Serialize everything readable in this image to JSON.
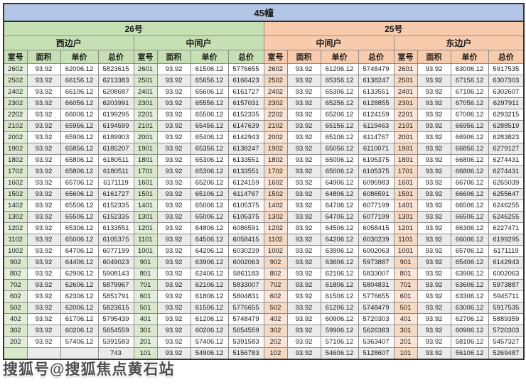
{
  "title": "45幢",
  "watermark": "搜狐号@搜狐焦点黄石站",
  "columns": [
    "室号",
    "面积",
    "单价",
    "总价"
  ],
  "colors": {
    "title_bar": "#b4c6e7",
    "building_26": "#c6e0b4",
    "building_25": "#f8cbad",
    "room_col_26": "#e2efda",
    "room_col_25": "#fce4d6",
    "alt_row": "#ebebeb"
  },
  "buildings": [
    {
      "label": "26号",
      "units": [
        {
          "label": "西边户",
          "rows": [
            [
              "2602",
              "93.92",
              "62006.12",
              "5823615"
            ],
            [
              "2502",
              "93.92",
              "66156.12",
              "6213383"
            ],
            [
              "2402",
              "93.92",
              "66106.12",
              "6208687"
            ],
            [
              "2302",
              "93.92",
              "66056.12",
              "6203991"
            ],
            [
              "2202",
              "93.92",
              "66006.12",
              "6199295"
            ],
            [
              "2102",
              "93.92",
              "65956.12",
              "6194599"
            ],
            [
              "2002",
              "93.92",
              "65906.12",
              "6189903"
            ],
            [
              "1902",
              "93.92",
              "65856.12",
              "6185207"
            ],
            [
              "1802",
              "93.92",
              "65806.12",
              "6180511"
            ],
            [
              "1702",
              "93.92",
              "65806.12",
              "6180511"
            ],
            [
              "1602",
              "93.92",
              "65706.12",
              "6171119"
            ],
            [
              "1502",
              "93.92",
              "65606.12",
              "6161727"
            ],
            [
              "1402",
              "93.92",
              "65506.12",
              "6152335"
            ],
            [
              "1302",
              "93.92",
              "65506.12",
              "6152335"
            ],
            [
              "1202",
              "93.92",
              "65306.12",
              "6133551"
            ],
            [
              "1102",
              "93.92",
              "65006.12",
              "6105375"
            ],
            [
              "1002",
              "93.92",
              "64706.12",
              "6077199"
            ],
            [
              "902",
              "93.92",
              "64406.12",
              "6049023"
            ],
            [
              "802",
              "93.92",
              "62906.12",
              "5908143"
            ],
            [
              "702",
              "93.92",
              "62606.12",
              "5879967"
            ],
            [
              "602",
              "93.92",
              "62306.12",
              "5851791"
            ],
            [
              "502",
              "93.92",
              "62006.12",
              "5823615"
            ],
            [
              "402",
              "93.92",
              "61706.12",
              "5795439"
            ],
            [
              "302",
              "93.92",
              "60206.12",
              "5654559"
            ],
            [
              "202",
              "93.92",
              "57406.12",
              "5391583"
            ],
            [
              "",
              "",
              "",
              "743"
            ]
          ]
        },
        {
          "label": "中间户",
          "rows": [
            [
              "2601",
              "93.92",
              "61506.12",
              "5776655"
            ],
            [
              "2501",
              "93.92",
              "65656.12",
              "6166423"
            ],
            [
              "2401",
              "93.92",
              "65606.12",
              "6161727"
            ],
            [
              "2301",
              "93.92",
              "65556.12",
              "6157031"
            ],
            [
              "2201",
              "93.92",
              "65506.12",
              "6152335"
            ],
            [
              "2101",
              "93.92",
              "65456.12",
              "6147639"
            ],
            [
              "2001",
              "93.92",
              "65406.12",
              "6142943"
            ],
            [
              "1901",
              "93.92",
              "65356.12",
              "6138247"
            ],
            [
              "1801",
              "93.92",
              "65306.12",
              "6133551"
            ],
            [
              "1701",
              "93.92",
              "65306.12",
              "6133551"
            ],
            [
              "1601",
              "93.92",
              "65206.12",
              "6124159"
            ],
            [
              "1501",
              "93.92",
              "65106.12",
              "6114767"
            ],
            [
              "1401",
              "93.92",
              "65006.12",
              "6105375"
            ],
            [
              "1301",
              "93.92",
              "65006.12",
              "6105375"
            ],
            [
              "1201",
              "93.92",
              "64806.12",
              "6086591"
            ],
            [
              "1101",
              "93.92",
              "64506.12",
              "6058415"
            ],
            [
              "1001",
              "93.92",
              "64206.12",
              "6030239"
            ],
            [
              "901",
              "93.92",
              "63906.12",
              "6002063"
            ],
            [
              "801",
              "93.92",
              "62406.12",
              "5861183"
            ],
            [
              "701",
              "93.92",
              "62106.12",
              "5833007"
            ],
            [
              "601",
              "93.92",
              "61806.12",
              "5804831"
            ],
            [
              "501",
              "93.92",
              "61506.12",
              "5776655"
            ],
            [
              "401",
              "93.92",
              "61206.12",
              "5748479"
            ],
            [
              "301",
              "93.92",
              "60206.12",
              "5654559"
            ],
            [
              "201",
              "93.92",
              "57406.12",
              "5391583"
            ],
            [
              "101",
              "93.92",
              "54906.12",
              "5156783"
            ]
          ]
        }
      ]
    },
    {
      "label": "25号",
      "units": [
        {
          "label": "中间户",
          "rows": [
            [
              "2602",
              "93.92",
              "61206.12",
              "5748479"
            ],
            [
              "2502",
              "93.92",
              "65356.12",
              "6138247"
            ],
            [
              "2402",
              "93.92",
              "65306.12",
              "6133551"
            ],
            [
              "2302",
              "93.92",
              "65256.12",
              "6128855"
            ],
            [
              "2202",
              "93.92",
              "65206.12",
              "6124159"
            ],
            [
              "2102",
              "93.92",
              "65156.12",
              "6119463"
            ],
            [
              "2002",
              "93.92",
              "65106.12",
              "6114767"
            ],
            [
              "1902",
              "93.92",
              "65056.12",
              "6110071"
            ],
            [
              "1802",
              "93.92",
              "65006.12",
              "6105375"
            ],
            [
              "1702",
              "93.92",
              "65006.12",
              "6105375"
            ],
            [
              "1602",
              "93.92",
              "64906.12",
              "6095983"
            ],
            [
              "1502",
              "93.92",
              "64806.12",
              "6086591"
            ],
            [
              "1402",
              "93.92",
              "64706.12",
              "6077199"
            ],
            [
              "1302",
              "93.92",
              "64706.12",
              "6077199"
            ],
            [
              "1202",
              "93.92",
              "64506.12",
              "6058415"
            ],
            [
              "1102",
              "93.92",
              "64206.12",
              "6030239"
            ],
            [
              "1002",
              "93.92",
              "63906.12",
              "6002063"
            ],
            [
              "902",
              "93.92",
              "63606.12",
              "5973887"
            ],
            [
              "802",
              "93.92",
              "62106.12",
              "5833007"
            ],
            [
              "702",
              "93.92",
              "61806.12",
              "5804831"
            ],
            [
              "602",
              "93.92",
              "61506.12",
              "5776655"
            ],
            [
              "502",
              "93.92",
              "61206.12",
              "5748479"
            ],
            [
              "402",
              "93.92",
              "60906.12",
              "5720303"
            ],
            [
              "302",
              "93.92",
              "59906.12",
              "5626383"
            ],
            [
              "202",
              "93.92",
              "57106.12",
              "5363407"
            ],
            [
              "102",
              "93.92",
              "54606.12",
              "5128607"
            ]
          ]
        },
        {
          "label": "东边户",
          "rows": [
            [
              "2601",
              "93.92",
              "63006.12",
              "5917535"
            ],
            [
              "2501",
              "93.92",
              "67156.12",
              "6307303"
            ],
            [
              "2401",
              "93.92",
              "67106.12",
              "6302607"
            ],
            [
              "2301",
              "93.92",
              "67056.12",
              "6297911"
            ],
            [
              "2201",
              "93.92",
              "67006.12",
              "6293215"
            ],
            [
              "2101",
              "93.92",
              "66956.12",
              "6288519"
            ],
            [
              "2001",
              "93.92",
              "66906.12",
              "6283823"
            ],
            [
              "1901",
              "93.92",
              "66856.12",
              "6279127"
            ],
            [
              "1801",
              "93.92",
              "66806.12",
              "6274431"
            ],
            [
              "1701",
              "93.92",
              "66806.12",
              "6274431"
            ],
            [
              "1601",
              "93.92",
              "66706.12",
              "6265039"
            ],
            [
              "1501",
              "93.92",
              "66606.12",
              "6255647"
            ],
            [
              "1401",
              "93.92",
              "66506.12",
              "6246255"
            ],
            [
              "1301",
              "93.92",
              "66506.12",
              "6246255"
            ],
            [
              "1201",
              "93.92",
              "66306.12",
              "6227471"
            ],
            [
              "1101",
              "93.92",
              "66006.12",
              "6199295"
            ],
            [
              "1001",
              "93.92",
              "65706.12",
              "6171119"
            ],
            [
              "901",
              "93.92",
              "65406.12",
              "6142943"
            ],
            [
              "801",
              "93.92",
              "63906.12",
              "6002063"
            ],
            [
              "701",
              "93.92",
              "63606.12",
              "5973887"
            ],
            [
              "601",
              "93.92",
              "63306.12",
              "5945711"
            ],
            [
              "501",
              "93.92",
              "63006.12",
              "5917535"
            ],
            [
              "401",
              "93.92",
              "62706.12",
              "5889359"
            ],
            [
              "301",
              "93.92",
              "60906.12",
              "5720303"
            ],
            [
              "201",
              "93.92",
              "58106.12",
              "5457327"
            ],
            [
              "101",
              "93.92",
              "56106.12",
              "5269487"
            ]
          ]
        }
      ]
    }
  ]
}
